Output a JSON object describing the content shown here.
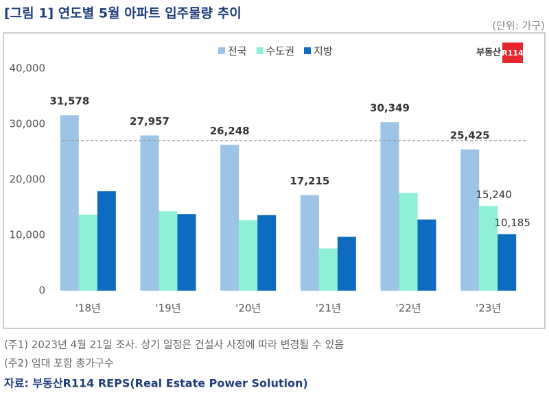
{
  "chart_data": {
    "type": "bar",
    "title": "[그림 1] 연도별 5월 아파트 입주물량 추이",
    "unit": "(단위: 가구)",
    "logo": {
      "text": "부동산",
      "mark": "R114"
    },
    "categories": [
      "'18년",
      "'19년",
      "'20년",
      "'21년",
      "'22년",
      "'23년"
    ],
    "series": [
      {
        "name": "전국",
        "color": "#9dc3e6",
        "values": [
          31578,
          27957,
          26248,
          17215,
          30349,
          25425
        ],
        "value_labels": [
          "31,578",
          "27,957",
          "26,248",
          "17,215",
          "30,349",
          "25,425"
        ]
      },
      {
        "name": "수도권",
        "color": "#8ef0d6",
        "values": [
          13700,
          14300,
          12700,
          7600,
          17600,
          15240
        ],
        "value_labels": [
          null,
          null,
          null,
          null,
          null,
          "15,240"
        ]
      },
      {
        "name": "지방",
        "color": "#0e6cc0",
        "values": [
          17900,
          13800,
          13600,
          9700,
          12800,
          10185
        ],
        "value_labels": [
          null,
          null,
          null,
          null,
          null,
          "10,185"
        ]
      }
    ],
    "reference_line": 27000,
    "ylim": [
      0,
      40000
    ],
    "yticks": [
      0,
      {
        "value": 10000,
        "label": "10,000"
      },
      {
        "value": 20000,
        "label": "20,000"
      },
      {
        "value": 30000,
        "label": "30,000"
      },
      {
        "value": 40000,
        "label": "40,000"
      }
    ],
    "grid": false,
    "notes": [
      "(주1) 2023년 4월 21일 조사. 상기 일정은 건설사 사정에 따라 변경될 수 있음",
      "(주2) 임대 포함 총가구수"
    ],
    "source": "자료: 부동산R114 REPS(Real Estate Power Solution)"
  }
}
